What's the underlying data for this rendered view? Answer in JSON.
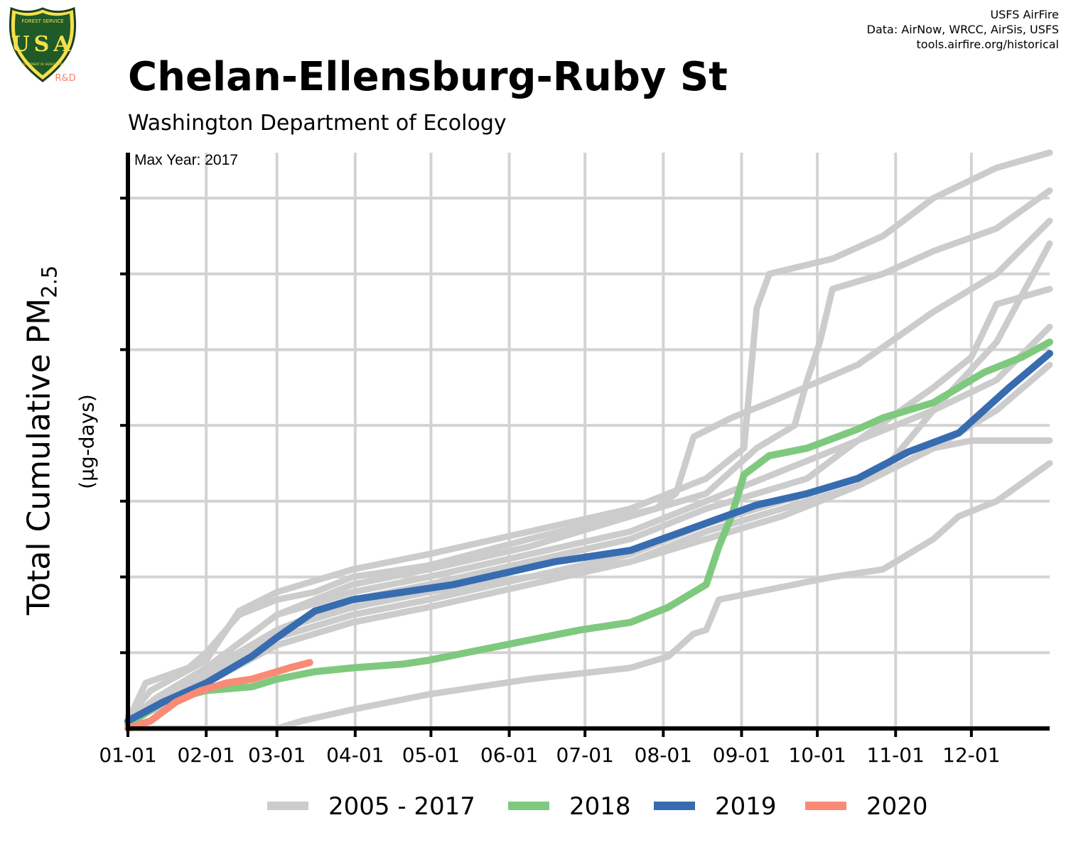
{
  "header": {
    "title": "Chelan-Ellensburg-Ruby St",
    "subtitle": "Washington Department of Ecology",
    "credits": [
      "USFS AirFire",
      "Data: AirNow, WRCC, AirSis, USFS",
      "tools.airfire.org/historical"
    ],
    "logo": {
      "top_text": "FOREST SERVICE",
      "letters": "USA",
      "bottom_text": "DEPARTMENT OF AGRICULTURE",
      "tag": "R&D"
    }
  },
  "colors": {
    "background_years": "#cccccc",
    "2018": "#7fc97f",
    "2019": "#386cb0",
    "2020": "#f98a76",
    "grid": "#d3d3d3",
    "rd_tag": "#f4806e"
  },
  "chart_data": {
    "type": "line",
    "annotation": "Max Year: 2017",
    "ylabel": {
      "main": "Total Cumulative PM",
      "sub": "2.5",
      "units": "(µg-days)"
    },
    "x_ticks": [
      "01-01",
      "02-01",
      "03-01",
      "04-01",
      "05-01",
      "06-01",
      "07-01",
      "08-01",
      "09-01",
      "10-01",
      "11-01",
      "12-01"
    ],
    "x_unit": "day of year",
    "xlim": [
      1,
      366
    ],
    "ylim": [
      0,
      7.6
    ],
    "y_tick_values": [
      1,
      2,
      3,
      4,
      5,
      6,
      7
    ],
    "grid": true,
    "legend_position": "bottom",
    "legend": [
      "2005 - 2017",
      "2018",
      "2019",
      "2020"
    ],
    "series": [
      {
        "name": "2005 - 2017",
        "group": "background",
        "color": "#cccccc",
        "points": [
          [
            1,
            0.1
          ],
          [
            8,
            0.6
          ],
          [
            25,
            0.8
          ],
          [
            32,
            1.0
          ],
          [
            45,
            1.5
          ],
          [
            60,
            1.7
          ],
          [
            75,
            1.8
          ],
          [
            90,
            2.0
          ],
          [
            120,
            2.15
          ],
          [
            160,
            2.5
          ],
          [
            190,
            2.75
          ],
          [
            210,
            2.9
          ],
          [
            218,
            3.1
          ],
          [
            225,
            3.85
          ],
          [
            240,
            4.1
          ],
          [
            255,
            4.3
          ],
          [
            290,
            4.8
          ],
          [
            320,
            5.5
          ],
          [
            345,
            6.0
          ],
          [
            366,
            6.7
          ]
        ]
      },
      {
        "name": "2005 - 2017",
        "group": "background",
        "color": "#cccccc",
        "points": [
          [
            1,
            0.15
          ],
          [
            10,
            0.5
          ],
          [
            32,
            0.9
          ],
          [
            45,
            1.55
          ],
          [
            60,
            1.8
          ],
          [
            90,
            2.1
          ],
          [
            120,
            2.3
          ],
          [
            160,
            2.6
          ],
          [
            200,
            2.9
          ],
          [
            230,
            3.3
          ],
          [
            245,
            3.7
          ],
          [
            250,
            5.55
          ],
          [
            255,
            6.0
          ],
          [
            280,
            6.2
          ],
          [
            300,
            6.5
          ],
          [
            320,
            7.0
          ],
          [
            345,
            7.4
          ],
          [
            366,
            7.6
          ]
        ]
      },
      {
        "name": "2005 - 2017",
        "group": "background",
        "color": "#cccccc",
        "points": [
          [
            1,
            0.1
          ],
          [
            12,
            0.4
          ],
          [
            32,
            0.8
          ],
          [
            60,
            1.5
          ],
          [
            90,
            1.9
          ],
          [
            120,
            2.1
          ],
          [
            160,
            2.4
          ],
          [
            200,
            2.8
          ],
          [
            230,
            3.1
          ],
          [
            250,
            3.7
          ],
          [
            265,
            4.0
          ],
          [
            270,
            4.6
          ],
          [
            275,
            5.1
          ],
          [
            280,
            5.8
          ],
          [
            300,
            6.0
          ],
          [
            320,
            6.3
          ],
          [
            345,
            6.6
          ],
          [
            366,
            7.1
          ]
        ]
      },
      {
        "name": "2005 - 2017",
        "group": "background",
        "color": "#cccccc",
        "points": [
          [
            1,
            0.1
          ],
          [
            15,
            0.35
          ],
          [
            32,
            0.75
          ],
          [
            60,
            1.3
          ],
          [
            90,
            1.7
          ],
          [
            120,
            1.9
          ],
          [
            160,
            2.2
          ],
          [
            200,
            2.5
          ],
          [
            230,
            2.9
          ],
          [
            250,
            3.1
          ],
          [
            270,
            3.3
          ],
          [
            290,
            3.8
          ],
          [
            320,
            4.5
          ],
          [
            335,
            4.9
          ],
          [
            345,
            5.6
          ],
          [
            366,
            5.8
          ]
        ]
      },
      {
        "name": "2005 - 2017",
        "group": "background",
        "color": "#cccccc",
        "points": [
          [
            1,
            0.1
          ],
          [
            15,
            0.3
          ],
          [
            32,
            0.7
          ],
          [
            60,
            1.3
          ],
          [
            90,
            1.6
          ],
          [
            120,
            1.8
          ],
          [
            160,
            2.0
          ],
          [
            200,
            2.3
          ],
          [
            230,
            2.7
          ],
          [
            250,
            2.9
          ],
          [
            270,
            3.1
          ],
          [
            300,
            3.4
          ],
          [
            320,
            4.2
          ],
          [
            345,
            5.1
          ],
          [
            366,
            6.4
          ]
        ]
      },
      {
        "name": "2005 - 2017",
        "group": "background",
        "color": "#cccccc",
        "points": [
          [
            1,
            0.1
          ],
          [
            15,
            0.4
          ],
          [
            32,
            0.8
          ],
          [
            60,
            1.5
          ],
          [
            90,
            1.8
          ],
          [
            120,
            2.0
          ],
          [
            160,
            2.3
          ],
          [
            200,
            2.6
          ],
          [
            230,
            3.0
          ],
          [
            260,
            3.4
          ],
          [
            290,
            3.8
          ],
          [
            320,
            4.2
          ],
          [
            345,
            4.6
          ],
          [
            366,
            5.3
          ]
        ]
      },
      {
        "name": "2005 - 2017",
        "group": "background",
        "color": "#cccccc",
        "points": [
          [
            1,
            0.1
          ],
          [
            15,
            0.35
          ],
          [
            32,
            0.7
          ],
          [
            60,
            1.2
          ],
          [
            90,
            1.5
          ],
          [
            120,
            1.7
          ],
          [
            160,
            2.0
          ],
          [
            200,
            2.2
          ],
          [
            230,
            2.6
          ],
          [
            260,
            2.9
          ],
          [
            290,
            3.2
          ],
          [
            320,
            3.7
          ],
          [
            345,
            4.2
          ],
          [
            366,
            4.8
          ]
        ]
      },
      {
        "name": "2005 - 2017",
        "group": "background",
        "color": "#cccccc",
        "points": [
          [
            1,
            0.1
          ],
          [
            15,
            0.3
          ],
          [
            32,
            0.6
          ],
          [
            60,
            1.1
          ],
          [
            90,
            1.4
          ],
          [
            120,
            1.6
          ],
          [
            160,
            1.9
          ],
          [
            200,
            2.2
          ],
          [
            230,
            2.5
          ],
          [
            260,
            2.8
          ],
          [
            290,
            3.2
          ],
          [
            320,
            3.7
          ],
          [
            335,
            3.8
          ],
          [
            366,
            3.8
          ]
        ]
      },
      {
        "name": "2005 - 2017",
        "group": "background",
        "color": "#cccccc",
        "points": [
          [
            1,
            0.0
          ],
          [
            60,
            0.0
          ],
          [
            70,
            0.1
          ],
          [
            90,
            0.25
          ],
          [
            120,
            0.45
          ],
          [
            160,
            0.65
          ],
          [
            200,
            0.8
          ],
          [
            215,
            0.95
          ],
          [
            225,
            1.25
          ],
          [
            230,
            1.3
          ],
          [
            235,
            1.7
          ],
          [
            250,
            1.8
          ],
          [
            280,
            2.0
          ],
          [
            300,
            2.1
          ],
          [
            320,
            2.5
          ],
          [
            330,
            2.8
          ],
          [
            345,
            3.0
          ],
          [
            366,
            3.5
          ]
        ]
      },
      {
        "name": "2018",
        "group": "highlight",
        "color": "#7fc97f",
        "points": [
          [
            1,
            0.05
          ],
          [
            15,
            0.35
          ],
          [
            32,
            0.5
          ],
          [
            50,
            0.55
          ],
          [
            60,
            0.65
          ],
          [
            75,
            0.75
          ],
          [
            90,
            0.8
          ],
          [
            110,
            0.85
          ],
          [
            120,
            0.9
          ],
          [
            150,
            1.1
          ],
          [
            180,
            1.3
          ],
          [
            200,
            1.4
          ],
          [
            215,
            1.6
          ],
          [
            225,
            1.8
          ],
          [
            230,
            1.9
          ],
          [
            235,
            2.4
          ],
          [
            240,
            2.8
          ],
          [
            245,
            3.35
          ],
          [
            255,
            3.6
          ],
          [
            270,
            3.7
          ],
          [
            290,
            3.95
          ],
          [
            300,
            4.1
          ],
          [
            320,
            4.3
          ],
          [
            340,
            4.7
          ],
          [
            355,
            4.9
          ],
          [
            366,
            5.1
          ]
        ]
      },
      {
        "name": "2019",
        "group": "highlight",
        "color": "#386cb0",
        "points": [
          [
            1,
            0.1
          ],
          [
            15,
            0.35
          ],
          [
            32,
            0.6
          ],
          [
            50,
            0.95
          ],
          [
            60,
            1.2
          ],
          [
            75,
            1.55
          ],
          [
            90,
            1.7
          ],
          [
            110,
            1.8
          ],
          [
            130,
            1.9
          ],
          [
            150,
            2.05
          ],
          [
            170,
            2.2
          ],
          [
            200,
            2.35
          ],
          [
            225,
            2.65
          ],
          [
            250,
            2.95
          ],
          [
            270,
            3.1
          ],
          [
            290,
            3.3
          ],
          [
            310,
            3.65
          ],
          [
            330,
            3.9
          ],
          [
            350,
            4.5
          ],
          [
            366,
            4.95
          ]
        ]
      },
      {
        "name": "2020",
        "group": "highlight",
        "color": "#f98a76",
        "points": [
          [
            1,
            0.0
          ],
          [
            10,
            0.1
          ],
          [
            20,
            0.35
          ],
          [
            30,
            0.5
          ],
          [
            40,
            0.6
          ],
          [
            50,
            0.65
          ],
          [
            60,
            0.75
          ],
          [
            65,
            0.8
          ],
          [
            73,
            0.87
          ]
        ]
      }
    ]
  }
}
